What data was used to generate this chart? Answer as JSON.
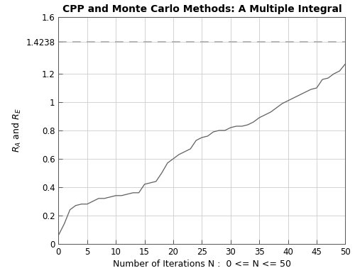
{
  "title": "CPP and Monte Carlo Methods: A Multiple Integral",
  "xlabel": "Number of Iterations N :  0 <= N <= 50",
  "ylabel": "R_A and R_E",
  "xlim": [
    0,
    50
  ],
  "ylim": [
    0,
    1.6
  ],
  "xticks": [
    0,
    5,
    10,
    15,
    20,
    25,
    30,
    35,
    40,
    45,
    50
  ],
  "yticks": [
    0,
    0.2,
    0.4,
    0.6,
    0.8,
    1.0,
    1.2,
    1.4238,
    1.6
  ],
  "ytick_labels": [
    "0",
    "0.2",
    "0.4",
    "0.6",
    "0.8",
    "1",
    "1.2",
    "1.4238",
    "1.6"
  ],
  "hline_y": 1.4238,
  "line_color": "#606060",
  "hline_color": "#aaaaaa",
  "grid_color": "#cccccc",
  "background_color": "#ffffff",
  "x_values": [
    0,
    1,
    2,
    3,
    4,
    5,
    6,
    7,
    8,
    9,
    10,
    11,
    12,
    13,
    14,
    15,
    16,
    17,
    18,
    19,
    20,
    21,
    22,
    23,
    24,
    25,
    26,
    27,
    28,
    29,
    30,
    31,
    32,
    33,
    34,
    35,
    36,
    37,
    38,
    39,
    40,
    41,
    42,
    43,
    44,
    45,
    46,
    47,
    48,
    49,
    50
  ],
  "y_values": [
    0.06,
    0.14,
    0.24,
    0.27,
    0.28,
    0.28,
    0.3,
    0.32,
    0.32,
    0.33,
    0.34,
    0.34,
    0.35,
    0.36,
    0.36,
    0.42,
    0.43,
    0.44,
    0.5,
    0.57,
    0.6,
    0.63,
    0.65,
    0.67,
    0.73,
    0.75,
    0.76,
    0.79,
    0.8,
    0.8,
    0.82,
    0.83,
    0.83,
    0.84,
    0.86,
    0.89,
    0.91,
    0.93,
    0.96,
    0.99,
    1.01,
    1.03,
    1.05,
    1.07,
    1.09,
    1.1,
    1.16,
    1.17,
    1.2,
    1.22,
    1.27
  ]
}
